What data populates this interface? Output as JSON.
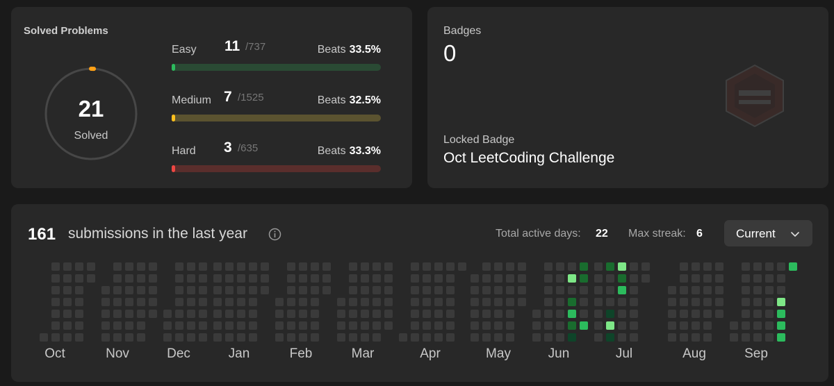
{
  "solved": {
    "title": "Solved Problems",
    "total": "21",
    "total_label": "Solved",
    "ring_fraction": 0.01,
    "difficulties": [
      {
        "name": "Easy",
        "count": "11",
        "total": "/737",
        "beats_label": "Beats",
        "beats_value": "33.5%",
        "fill_fraction": 0.015,
        "color": "#2cbb5d",
        "track_color": "#2a4a34",
        "name_color": "#c8c8c8"
      },
      {
        "name": "Medium",
        "count": "7",
        "total": "/1525",
        "beats_label": "Beats",
        "beats_value": "32.5%",
        "fill_fraction": 0.005,
        "color": "#ffc01e",
        "track_color": "#5b5330",
        "name_color": "#c8c8c8"
      },
      {
        "name": "Hard",
        "count": "3",
        "total": "/635",
        "beats_label": "Beats",
        "beats_value": "33.3%",
        "fill_fraction": 0.005,
        "color": "#ef4743",
        "track_color": "#5a2e2c",
        "name_color": "#c8c8c8"
      }
    ]
  },
  "badges": {
    "label": "Badges",
    "count": "0",
    "locked_label": "Locked Badge",
    "locked_name": "Oct LeetCoding Challenge",
    "badge_icon": "hexagon-badge-icon"
  },
  "calendar": {
    "count": "161",
    "text": "submissions in the last year",
    "active_days_label": "Total active days:",
    "active_days_value": "22",
    "max_streak_label": "Max streak:",
    "max_streak_value": "6",
    "select_value": "Current",
    "colors": {
      "empty": "#3a3a3a",
      "level1": "#0e4429",
      "level2": "#196c2e",
      "level3": "#2cbb5d",
      "level4": "#7ee787"
    },
    "months": [
      "Oct",
      "Nov",
      "Dec",
      "Jan",
      "Feb",
      "Mar",
      "Apr",
      "May",
      "Jun",
      "Jul",
      "Aug",
      "Sep"
    ]
  }
}
